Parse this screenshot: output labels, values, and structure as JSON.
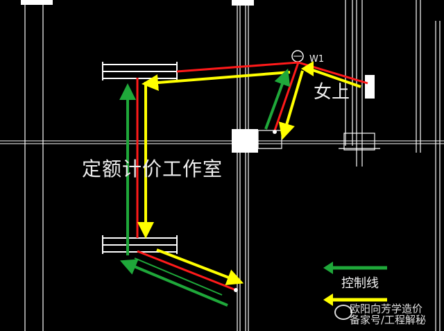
{
  "labels": {
    "studio": "定额计价工作室",
    "column_tag": "女上",
    "circle_tag": "W1",
    "legend_label": "控制线"
  },
  "watermark": {
    "line1": "欧阳向芳学造价",
    "line2": "备家号/工程解秘"
  },
  "colors": {
    "background": "#000000",
    "cad_lines": "#ffffff",
    "red_line": "#ff1a1a",
    "yellow_line": "#ffff00",
    "green_line": "#1fa83a"
  },
  "legend": [
    {
      "label": "控制线",
      "color": "#1fa83a"
    },
    {
      "label": "",
      "color": "#ffff00"
    }
  ]
}
